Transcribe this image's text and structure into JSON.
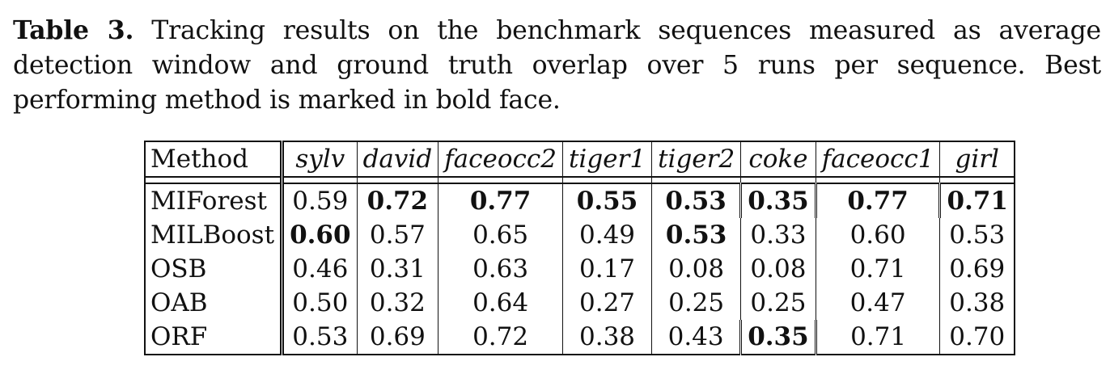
{
  "caption": {
    "label": "Table 3.",
    "text": " Tracking results on the benchmark sequences measured as average detection window and ground truth overlap over 5 runs per sequence. Best performing method is marked in bold face."
  },
  "table": {
    "headers": [
      "Method",
      "sylv",
      "david",
      "faceocc2",
      "tiger1",
      "tiger2",
      "coke",
      "faceocc1",
      "girl"
    ],
    "rows": [
      {
        "method": "MIForest",
        "values": [
          "0.59",
          "0.72",
          "0.77",
          "0.55",
          "0.53",
          "0.35",
          "0.77",
          "0.71"
        ],
        "bold": [
          false,
          true,
          true,
          true,
          true,
          true,
          true,
          true
        ]
      },
      {
        "method": "MILBoost",
        "values": [
          "0.60",
          "0.57",
          "0.65",
          "0.49",
          "0.53",
          "0.33",
          "0.60",
          "0.53"
        ],
        "bold": [
          true,
          false,
          false,
          false,
          true,
          false,
          false,
          false
        ]
      },
      {
        "method": "OSB",
        "values": [
          "0.46",
          "0.31",
          "0.63",
          "0.17",
          "0.08",
          "0.08",
          "0.71",
          "0.69"
        ],
        "bold": [
          false,
          false,
          false,
          false,
          false,
          false,
          false,
          false
        ]
      },
      {
        "method": "OAB",
        "values": [
          "0.50",
          "0.32",
          "0.64",
          "0.27",
          "0.25",
          "0.25",
          "0.47",
          "0.38"
        ],
        "bold": [
          false,
          false,
          false,
          false,
          false,
          false,
          false,
          false
        ]
      },
      {
        "method": "ORF",
        "values": [
          "0.53",
          "0.69",
          "0.72",
          "0.38",
          "0.43",
          "0.35",
          "0.71",
          "0.70"
        ],
        "bold": [
          false,
          false,
          false,
          false,
          false,
          true,
          false,
          false
        ]
      }
    ]
  }
}
